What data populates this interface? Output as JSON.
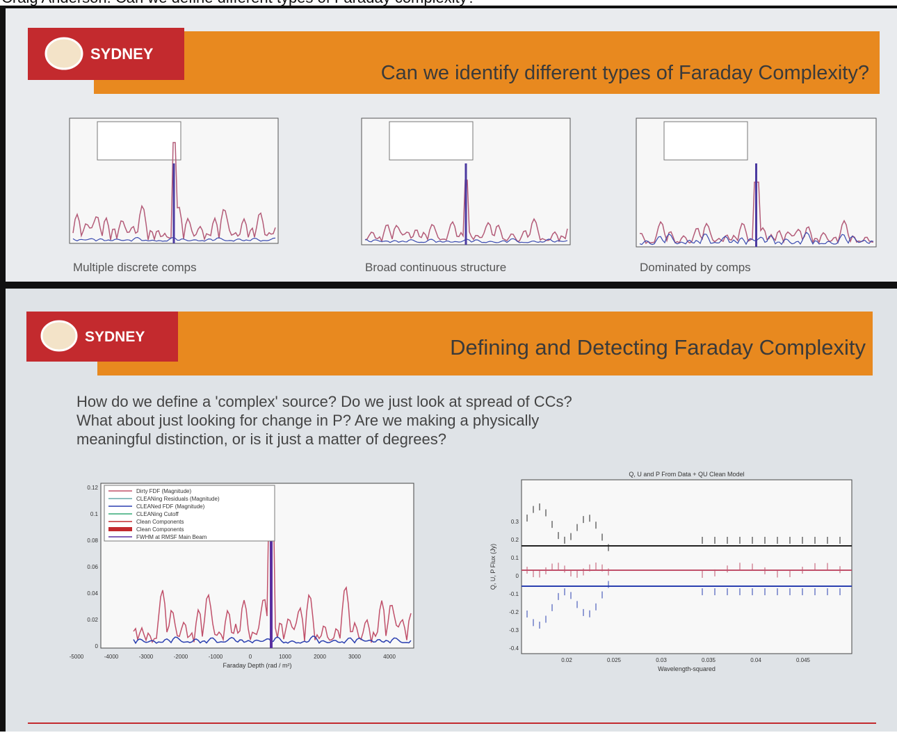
{
  "caption": "Craig Anderson: Can we define different types of Faraday complexity?",
  "slides": [
    {
      "logo": "SYDNEY",
      "title": "Can we identify different types of Faraday Complexity?",
      "panels": [
        {
          "caption": "Multiple discrete comps"
        },
        {
          "caption": "Broad continuous structure"
        },
        {
          "caption": "Dominated by comps"
        }
      ]
    },
    {
      "logo": "SYDNEY",
      "title": "Defining and Detecting Faraday Complexity",
      "question": [
        "How do we define a 'complex' source? Do we just look at spread of CCs?",
        "What about just looking for change in P? Are we making a physically",
        "meaningful distinction, or is it just a matter of degrees?"
      ],
      "plots": [
        {
          "xlabel": "Faraday Depth (rad / m²)",
          "xticks": [
            -5000,
            -4000,
            -3000,
            -2000,
            -1000,
            0,
            1000,
            2000,
            3000,
            4000
          ],
          "yticks": [
            0,
            0.02,
            0.04,
            0.06,
            0.08,
            0.1,
            0.12
          ],
          "legend": [
            "Dirty FDF (Magnitude)",
            "CLEANing Residuals (Magnitude)",
            "CLEANed FDF (Magnitude)",
            "CLEANing Cutoff",
            "Clean Components",
            "Clean Components",
            "FWHM at RMSF Main Beam"
          ]
        },
        {
          "title": "Q, U and P From Data + QU Clean Model",
          "xlabel": "Wavelength-squared",
          "ylabel": "Q, U, P Flux (Jy)",
          "xticks": [
            0.02,
            0.025,
            0.03,
            0.035,
            0.04,
            0.045
          ],
          "yticks": [
            -0.4,
            -0.3,
            -0.2,
            -0.1,
            0,
            0.1,
            0.2,
            0.3
          ]
        }
      ]
    }
  ]
}
